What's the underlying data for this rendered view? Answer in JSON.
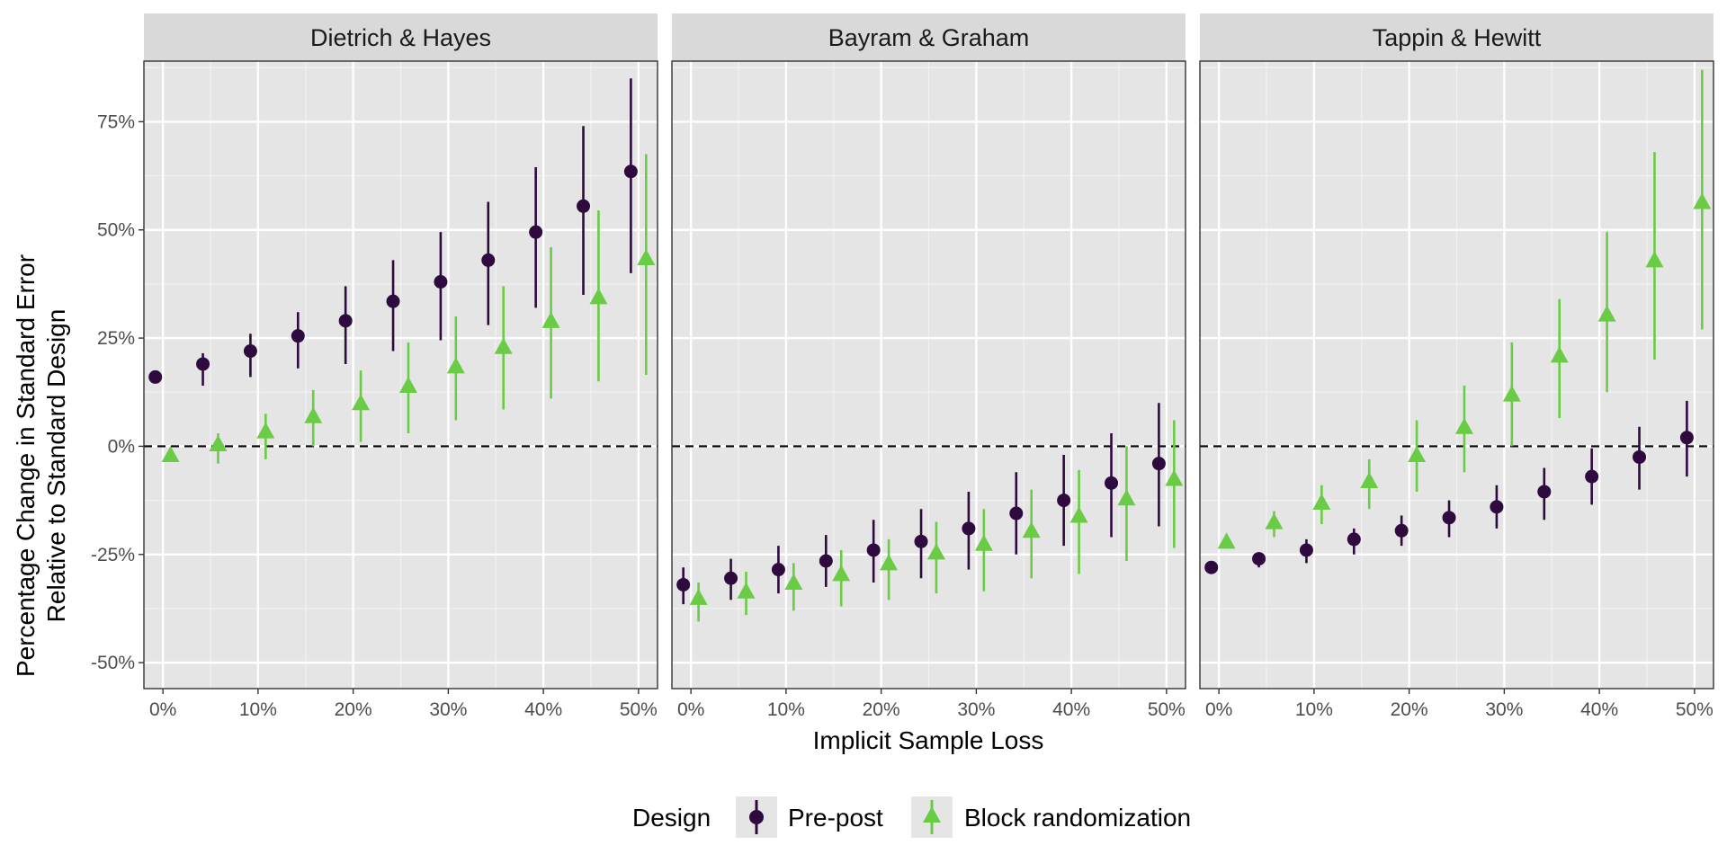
{
  "chart_data": {
    "type": "scatter",
    "xlabel": "Implicit Sample Loss",
    "ylabel_lines": [
      "Percentage Change in Standard Error",
      "Relative to Standard Design"
    ],
    "x_ticks": [
      "0%",
      "10%",
      "20%",
      "30%",
      "40%",
      "50%"
    ],
    "y_ticks": [
      "-50%",
      "-25%",
      "0%",
      "25%",
      "50%",
      "75%"
    ],
    "ylim": [
      -56,
      89
    ],
    "xlim": [
      -2,
      52
    ],
    "reference_line": 0,
    "grid": true,
    "legend": {
      "title": "Design",
      "position": "bottom",
      "entries": [
        {
          "label": "Pre-post",
          "color": "#2e0a3f",
          "shape": "circle"
        },
        {
          "label": "Block randomization",
          "color": "#6acb45",
          "shape": "triangle"
        }
      ]
    },
    "x": [
      0,
      5,
      10,
      15,
      20,
      25,
      30,
      35,
      40,
      45,
      50
    ],
    "panels": [
      {
        "title": "Dietrich & Hayes",
        "series": [
          {
            "name": "Pre-post",
            "y": [
              16,
              19,
              22,
              25.5,
              29,
              33.5,
              38,
              43,
              49.5,
              55.5,
              63.5
            ],
            "lo": [
              16,
              14,
              16,
              18,
              19,
              22,
              24.5,
              28,
              32,
              35,
              40
            ],
            "hi": [
              16,
              21.5,
              26,
              31,
              37,
              43,
              49.5,
              56.5,
              64.5,
              74,
              85
            ]
          },
          {
            "name": "Block randomization",
            "y": [
              -2,
              0.5,
              3.5,
              7,
              10,
              14,
              18.5,
              23,
              29,
              34.5,
              43.5
            ],
            "lo": [
              -2,
              -4,
              -3,
              0,
              1,
              3,
              6,
              8.5,
              11,
              15,
              16.5
            ],
            "hi": [
              -2,
              3,
              7.5,
              13,
              17.5,
              24,
              30,
              37,
              46,
              54.5,
              67.5
            ]
          }
        ]
      },
      {
        "title": "Bayram & Graham",
        "series": [
          {
            "name": "Pre-post",
            "y": [
              -32,
              -30.5,
              -28.5,
              -26.5,
              -24,
              -22,
              -19,
              -15.5,
              -12.5,
              -8.5,
              -4
            ],
            "lo": [
              -36.5,
              -35.5,
              -34,
              -32.5,
              -31.5,
              -30.5,
              -28.5,
              -25,
              -23,
              -21,
              -18.5
            ],
            "hi": [
              -28,
              -26,
              -23,
              -20.5,
              -17,
              -14.5,
              -10.5,
              -6,
              -2,
              3,
              10
            ]
          },
          {
            "name": "Block randomization",
            "y": [
              -35,
              -33.5,
              -31.5,
              -29.5,
              -27,
              -24.5,
              -22.5,
              -19.5,
              -16,
              -12,
              -7.5
            ],
            "lo": [
              -40.5,
              -39,
              -38,
              -37,
              -35.5,
              -34,
              -33.5,
              -30.5,
              -29.5,
              -26.5,
              -23.5
            ],
            "hi": [
              -31.5,
              -29,
              -27,
              -24,
              -21.5,
              -17.5,
              -14.5,
              -10,
              -5.5,
              0,
              6
            ]
          }
        ]
      },
      {
        "title": "Tappin & Hewitt",
        "series": [
          {
            "name": "Pre-post",
            "y": [
              -28,
              -26,
              -24,
              -21.5,
              -19.5,
              -16.5,
              -14,
              -10.5,
              -7,
              -2.5,
              2
            ],
            "lo": [
              -29,
              -28,
              -27,
              -25,
              -23,
              -21,
              -19,
              -17,
              -13.5,
              -10,
              -7
            ],
            "hi": [
              -27,
              -24.5,
              -21.5,
              -19,
              -16,
              -12.5,
              -9,
              -5,
              -0.5,
              4.5,
              10.5
            ]
          },
          {
            "name": "Block randomization",
            "y": [
              -22,
              -17.5,
              -13,
              -8,
              -2,
              4.5,
              12,
              21,
              30.5,
              43,
              56.5
            ],
            "lo": [
              -22,
              -21,
              -18,
              -14.5,
              -10.5,
              -6,
              0,
              6.5,
              12.5,
              20,
              27
            ],
            "hi": [
              -22,
              -15,
              -9,
              -3,
              6,
              14,
              24,
              34,
              49.5,
              68,
              87
            ]
          }
        ]
      }
    ]
  }
}
